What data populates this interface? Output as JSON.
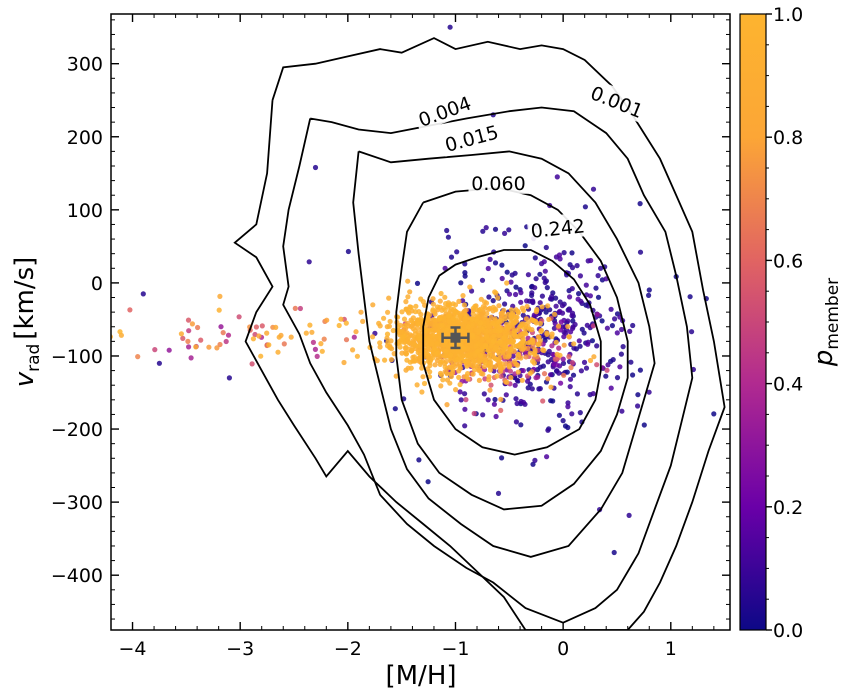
{
  "chart_data": {
    "type": "scatter",
    "title": "",
    "xlabel": "[M/H]",
    "ylabel_main": "v",
    "ylabel_sub": "rad",
    "ylabel_unit": "[km/s]",
    "xlim": [
      -4.2,
      1.55
    ],
    "ylim": [
      -475,
      368
    ],
    "x_ticks": [
      -4,
      -3,
      -2,
      -1,
      0,
      1
    ],
    "x_tick_labels": [
      "−4",
      "−3",
      "−2",
      "−1",
      "0",
      "1"
    ],
    "y_ticks": [
      300,
      200,
      100,
      0,
      -100,
      -200,
      -300,
      -400
    ],
    "y_tick_labels": [
      "300",
      "200",
      "100",
      "0",
      "−100",
      "−200",
      "−300",
      "−400"
    ],
    "colorbar": {
      "label_main": "p",
      "label_sub": "member",
      "range": [
        0.0,
        1.0
      ],
      "ticks": [
        0.0,
        0.2,
        0.4,
        0.6,
        0.8,
        1.0
      ],
      "tick_labels": [
        "0.0",
        "0.2",
        "0.4",
        "0.6",
        "0.8",
        "1.0"
      ],
      "colormap": [
        "#0d0887",
        "#6a00a8",
        "#b12a90",
        "#e16462",
        "#fca636",
        "#f0f921"
      ]
    },
    "contours": [
      {
        "level": "0.001",
        "points": [
          [
            -2.7,
            250
          ],
          [
            -2.6,
            295
          ],
          [
            -2.3,
            300
          ],
          [
            -2.0,
            310
          ],
          [
            -1.7,
            320
          ],
          [
            -1.5,
            315
          ],
          [
            -1.2,
            335
          ],
          [
            -1.0,
            320
          ],
          [
            -0.7,
            330
          ],
          [
            -0.4,
            320
          ],
          [
            -0.2,
            325
          ],
          [
            0.0,
            320
          ],
          [
            0.2,
            305
          ],
          [
            0.45,
            270
          ],
          [
            0.6,
            240
          ],
          [
            0.75,
            205
          ],
          [
            0.9,
            170
          ],
          [
            1.05,
            120
          ],
          [
            1.2,
            70
          ],
          [
            1.3,
            -10
          ],
          [
            1.4,
            -80
          ],
          [
            1.5,
            -170
          ],
          [
            1.35,
            -230
          ],
          [
            1.2,
            -300
          ],
          [
            1.05,
            -360
          ],
          [
            0.9,
            -410
          ],
          [
            0.75,
            -450
          ],
          [
            0.6,
            -475
          ],
          [
            -0.35,
            -475
          ],
          [
            -0.55,
            -430
          ],
          [
            -0.8,
            -395
          ],
          [
            -1.05,
            -360
          ],
          [
            -1.3,
            -330
          ],
          [
            -1.55,
            -300
          ],
          [
            -1.8,
            -265
          ],
          [
            -2.0,
            -230
          ],
          [
            -2.2,
            -265
          ],
          [
            -2.3,
            -240
          ],
          [
            -2.5,
            -195
          ],
          [
            -2.65,
            -160
          ],
          [
            -2.8,
            -120
          ],
          [
            -2.95,
            -80
          ],
          [
            -2.85,
            -40
          ],
          [
            -2.7,
            -5
          ],
          [
            -2.85,
            35
          ],
          [
            -3.05,
            55
          ],
          [
            -2.85,
            80
          ],
          [
            -2.75,
            150
          ],
          [
            -2.7,
            250
          ]
        ]
      },
      {
        "level": "0.004",
        "points": [
          [
            -2.35,
            225
          ],
          [
            -2.15,
            220
          ],
          [
            -1.9,
            210
          ],
          [
            -1.6,
            205
          ],
          [
            -1.25,
            215
          ],
          [
            -0.9,
            225
          ],
          [
            -0.5,
            235
          ],
          [
            -0.2,
            240
          ],
          [
            0.1,
            235
          ],
          [
            0.4,
            205
          ],
          [
            0.6,
            170
          ],
          [
            0.75,
            120
          ],
          [
            0.95,
            70
          ],
          [
            1.05,
            10
          ],
          [
            1.15,
            -60
          ],
          [
            1.2,
            -130
          ],
          [
            1.1,
            -190
          ],
          [
            1.0,
            -250
          ],
          [
            0.85,
            -310
          ],
          [
            0.7,
            -370
          ],
          [
            0.5,
            -420
          ],
          [
            0.3,
            -445
          ],
          [
            0.0,
            -465
          ],
          [
            -0.35,
            -445
          ],
          [
            -0.65,
            -410
          ],
          [
            -0.9,
            -390
          ],
          [
            -1.2,
            -360
          ],
          [
            -1.45,
            -330
          ],
          [
            -1.7,
            -290
          ],
          [
            -1.85,
            -235
          ],
          [
            -2.0,
            -195
          ],
          [
            -2.2,
            -150
          ],
          [
            -2.35,
            -110
          ],
          [
            -2.45,
            -70
          ],
          [
            -2.6,
            -30
          ],
          [
            -2.55,
            -5
          ],
          [
            -2.6,
            50
          ],
          [
            -2.55,
            100
          ],
          [
            -2.45,
            160
          ],
          [
            -2.35,
            225
          ]
        ]
      },
      {
        "level": "0.015",
        "points": [
          [
            -1.9,
            180
          ],
          [
            -1.6,
            165
          ],
          [
            -1.25,
            170
          ],
          [
            -0.85,
            175
          ],
          [
            -0.5,
            180
          ],
          [
            -0.2,
            170
          ],
          [
            0.05,
            150
          ],
          [
            0.3,
            110
          ],
          [
            0.5,
            60
          ],
          [
            0.7,
            0
          ],
          [
            0.8,
            -60
          ],
          [
            0.85,
            -110
          ],
          [
            0.75,
            -160
          ],
          [
            0.65,
            -210
          ],
          [
            0.55,
            -260
          ],
          [
            0.35,
            -310
          ],
          [
            0.05,
            -360
          ],
          [
            -0.3,
            -375
          ],
          [
            -0.65,
            -360
          ],
          [
            -0.95,
            -330
          ],
          [
            -1.25,
            -295
          ],
          [
            -1.45,
            -255
          ],
          [
            -1.6,
            -200
          ],
          [
            -1.7,
            -140
          ],
          [
            -1.8,
            -80
          ],
          [
            -1.85,
            -20
          ],
          [
            -1.9,
            40
          ],
          [
            -1.95,
            110
          ],
          [
            -1.9,
            180
          ]
        ]
      },
      {
        "level": "0.060",
        "points": [
          [
            -1.3,
            110
          ],
          [
            -1.0,
            125
          ],
          [
            -0.6,
            130
          ],
          [
            -0.3,
            120
          ],
          [
            -0.05,
            100
          ],
          [
            0.15,
            70
          ],
          [
            0.35,
            30
          ],
          [
            0.5,
            -20
          ],
          [
            0.6,
            -80
          ],
          [
            0.6,
            -130
          ],
          [
            0.5,
            -180
          ],
          [
            0.35,
            -230
          ],
          [
            0.1,
            -275
          ],
          [
            -0.2,
            -305
          ],
          [
            -0.55,
            -310
          ],
          [
            -0.85,
            -290
          ],
          [
            -1.15,
            -260
          ],
          [
            -1.35,
            -220
          ],
          [
            -1.5,
            -160
          ],
          [
            -1.55,
            -100
          ],
          [
            -1.55,
            -40
          ],
          [
            -1.5,
            20
          ],
          [
            -1.45,
            70
          ],
          [
            -1.3,
            110
          ]
        ]
      },
      {
        "level": "0.242",
        "points": [
          [
            -0.8,
            35
          ],
          [
            -0.55,
            45
          ],
          [
            -0.3,
            45
          ],
          [
            -0.1,
            30
          ],
          [
            0.1,
            5
          ],
          [
            0.25,
            -30
          ],
          [
            0.35,
            -80
          ],
          [
            0.35,
            -120
          ],
          [
            0.3,
            -160
          ],
          [
            0.15,
            -200
          ],
          [
            -0.15,
            -225
          ],
          [
            -0.45,
            -235
          ],
          [
            -0.75,
            -225
          ],
          [
            -1.0,
            -200
          ],
          [
            -1.2,
            -160
          ],
          [
            -1.3,
            -110
          ],
          [
            -1.3,
            -60
          ],
          [
            -1.25,
            -20
          ],
          [
            -1.15,
            10
          ],
          [
            -1.0,
            25
          ],
          [
            -0.8,
            35
          ]
        ]
      }
    ],
    "contour_labels": [
      {
        "text": "0.001",
        "x": 0.5,
        "y": 248,
        "angle": 22
      },
      {
        "text": "0.004",
        "x": -1.1,
        "y": 235,
        "angle": -20
      },
      {
        "text": "0.015",
        "x": -0.85,
        "y": 198,
        "angle": -15
      },
      {
        "text": "0.060",
        "x": -0.6,
        "y": 137,
        "angle": 0
      },
      {
        "text": "0.242",
        "x": -0.05,
        "y": 75,
        "angle": -6
      }
    ],
    "summary_point": {
      "x": -1.0,
      "y": -75,
      "xerr": 0.12,
      "yerr": 14
    },
    "scatter_groups": [
      {
        "name": "members",
        "center_x": -0.95,
        "center_y": -75,
        "spread_x": 0.32,
        "spread_y": 22,
        "n": 1400,
        "p_range": [
          0.85,
          1.0
        ]
      },
      {
        "name": "transition",
        "center_x": -0.55,
        "center_y": -95,
        "spread_x": 0.35,
        "spread_y": 30,
        "n": 220,
        "p_range": [
          0.2,
          0.9
        ]
      },
      {
        "name": "field_near",
        "center_x": -0.2,
        "center_y": -70,
        "spread_x": 0.4,
        "spread_y": 60,
        "n": 350,
        "p_range": [
          0.0,
          0.15
        ]
      },
      {
        "name": "field_wide",
        "center_x": -0.3,
        "center_y": -60,
        "spread_x": 0.7,
        "spread_y": 100,
        "n": 90,
        "p_range": [
          0.0,
          0.1
        ]
      },
      {
        "name": "metal_poor",
        "center_x": -2.9,
        "center_y": -70,
        "spread_x": 0.6,
        "spread_y": 20,
        "n": 70,
        "p_range": [
          0.3,
          1.0
        ]
      }
    ],
    "outliers": [
      [
        -1.05,
        350
      ],
      [
        -2.3,
        158
      ],
      [
        -0.65,
        230
      ],
      [
        -0.6,
        -288
      ],
      [
        -3.1,
        -130
      ],
      [
        -3.9,
        -15
      ],
      [
        -3.75,
        -110
      ]
    ]
  }
}
